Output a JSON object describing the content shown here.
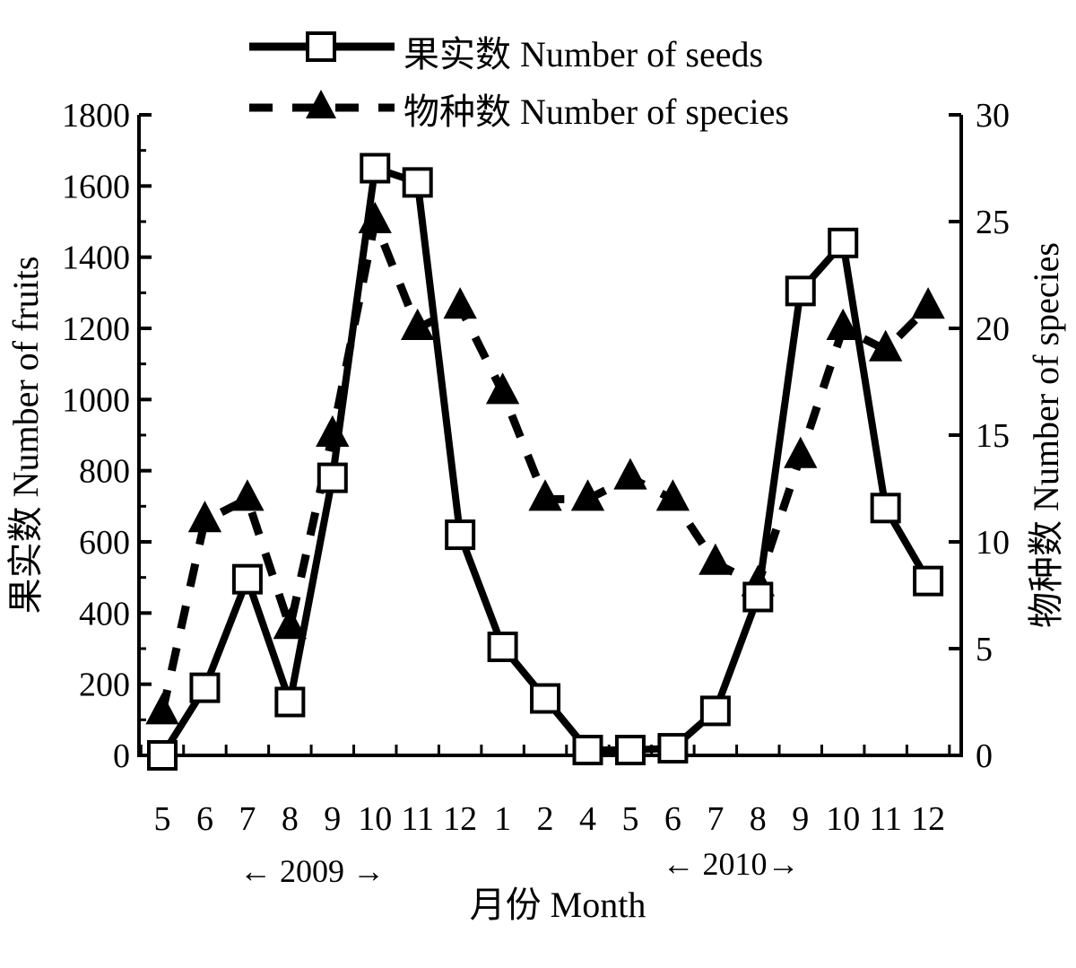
{
  "chart_data": {
    "type": "line",
    "categories": [
      "5",
      "6",
      "7",
      "8",
      "9",
      "10",
      "11",
      "12",
      "1",
      "2",
      "4",
      "5",
      "6",
      "7",
      "8",
      "9",
      "10",
      "11",
      "12"
    ],
    "series": [
      {
        "name": "果实数 Number of seeds",
        "axis": "left",
        "style": "solid",
        "marker": "open-square",
        "values": [
          0,
          190,
          495,
          150,
          780,
          1650,
          1610,
          620,
          305,
          160,
          15,
          15,
          20,
          125,
          445,
          1305,
          1440,
          695,
          490
        ]
      },
      {
        "name": "物种数 Number of species",
        "axis": "right",
        "style": "dashed",
        "marker": "filled-triangle",
        "values": [
          2,
          11,
          12,
          6,
          15,
          25,
          20,
          21,
          17,
          12,
          12,
          13,
          12,
          9,
          8,
          14,
          20,
          19,
          21
        ]
      }
    ],
    "ylabel_left": "果实数 Number of fruits",
    "ylabel_right": "物种数 Number of species",
    "xlabel": "月份 Month",
    "ylim_left": [
      0,
      1800
    ],
    "ylim_right": [
      0,
      30
    ],
    "yticks_left": [
      0,
      200,
      400,
      600,
      800,
      1000,
      1200,
      1400,
      1600,
      1800
    ],
    "yticks_right": [
      0,
      5,
      10,
      15,
      20,
      25,
      30
    ],
    "year_labels": [
      "← 2009 →",
      "← 2010→"
    ],
    "legend_position": "top-center",
    "grid": false
  }
}
